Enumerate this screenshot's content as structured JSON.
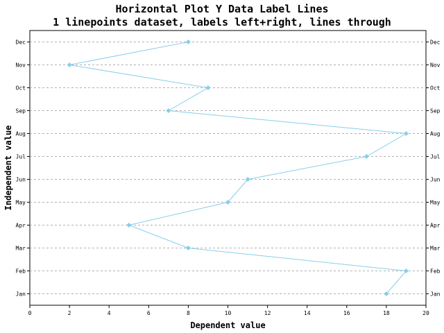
{
  "chart_data": {
    "type": "line",
    "orientation": "horizontal",
    "title": "Horizontal Plot Y Data Label Lines",
    "subtitle": "1 linepoints dataset, labels left+right, lines through",
    "xlabel": "Dependent value",
    "ylabel": "Independent value",
    "xlim": [
      0,
      20
    ],
    "x_ticks": [
      "0",
      "2",
      "4",
      "6",
      "8",
      "10",
      "12",
      "14",
      "16",
      "18",
      "20"
    ],
    "categories": [
      "Jan",
      "Feb",
      "Mar",
      "Apr",
      "May",
      "Jun",
      "Jul",
      "Aug",
      "Sep",
      "Oct",
      "Nov",
      "Dec"
    ],
    "category_labels_sides": [
      "left",
      "right"
    ],
    "grid": "horizontal dashed",
    "series": [
      {
        "values": [
          18,
          19,
          8,
          5,
          10,
          11,
          17,
          19,
          7,
          9,
          2,
          8
        ],
        "color": "#87ceeb",
        "marker": "diamond"
      }
    ]
  }
}
